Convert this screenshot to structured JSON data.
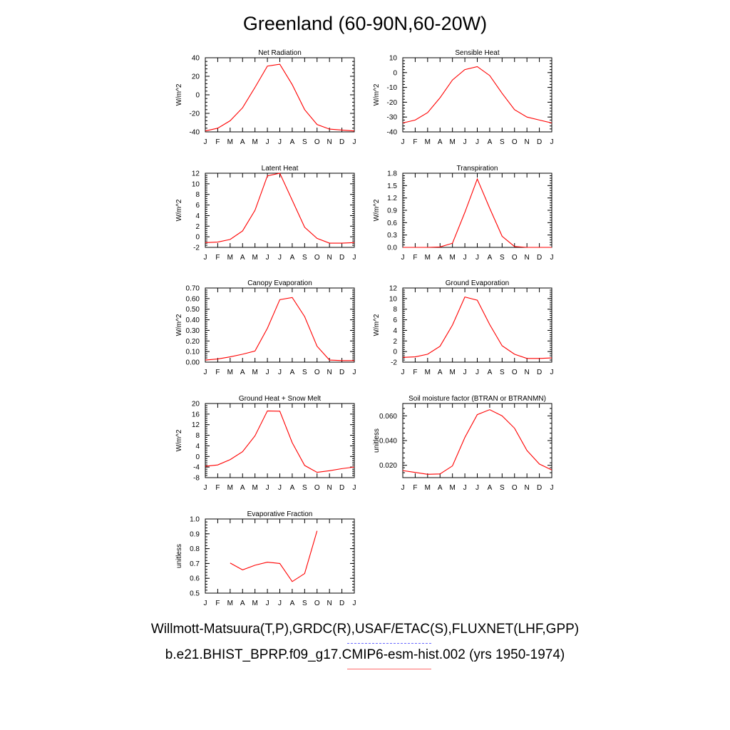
{
  "title": "Greenland (60-90N,60-20W)",
  "legend": {
    "obs": "Willmott-Matsuura(T,P),GRDC(R),USAF/ETAC(S),FLUXNET(LHF,GPP)",
    "model": "b.e21.BHIST_BPRP.f09_g17.CMIP6-esm-hist.002 (yrs 1950-1974)",
    "obs_color": "#6a6aff",
    "model_color": "#ff0000"
  },
  "chart_data": [
    {
      "type": "line",
      "title": "Net Radiation",
      "ylabel": "W/m^2",
      "ylim": [
        -40,
        40
      ],
      "yticks": [
        -40,
        -20,
        0,
        20,
        40
      ],
      "ytick_labels": [
        "-40",
        "-20",
        "0",
        "20",
        "40"
      ],
      "categories": [
        "J",
        "F",
        "M",
        "A",
        "M",
        "J",
        "J",
        "A",
        "S",
        "O",
        "N",
        "D",
        "J"
      ],
      "series": [
        {
          "color": "#ff0000",
          "values": [
            -39,
            -36,
            -28,
            -14,
            8,
            31,
            33,
            11,
            -16,
            -32,
            -37,
            -38,
            -39
          ]
        }
      ]
    },
    {
      "type": "line",
      "title": "Sensible Heat",
      "ylabel": "W/m^2",
      "ylim": [
        -40,
        10
      ],
      "yticks": [
        -40,
        -30,
        -20,
        -10,
        0,
        10
      ],
      "ytick_labels": [
        "-40",
        "-30",
        "-20",
        "-10",
        "0",
        "10"
      ],
      "categories": [
        "J",
        "F",
        "M",
        "A",
        "M",
        "J",
        "J",
        "A",
        "S",
        "O",
        "N",
        "D",
        "J"
      ],
      "series": [
        {
          "color": "#ff0000",
          "values": [
            -34,
            -32,
            -27,
            -17,
            -5,
            2,
            4,
            -2,
            -14,
            -25,
            -30,
            -32,
            -34
          ]
        }
      ]
    },
    {
      "type": "line",
      "title": "Latent Heat",
      "ylabel": "W/m^2",
      "ylim": [
        -2,
        12
      ],
      "yticks": [
        -2,
        0,
        2,
        4,
        6,
        8,
        10,
        12
      ],
      "ytick_labels": [
        "-2",
        "0",
        "2",
        "4",
        "6",
        "8",
        "10",
        "12"
      ],
      "categories": [
        "J",
        "F",
        "M",
        "A",
        "M",
        "J",
        "J",
        "A",
        "S",
        "O",
        "N",
        "D",
        "J"
      ],
      "series": [
        {
          "color": "#ff0000",
          "values": [
            -1.1,
            -1.0,
            -0.5,
            1.1,
            5.0,
            11.5,
            12.0,
            6.9,
            1.8,
            -0.3,
            -1.2,
            -1.2,
            -1.1
          ]
        }
      ]
    },
    {
      "type": "line",
      "title": "Transpiration",
      "ylabel": "W/m^2",
      "ylim": [
        0.0,
        1.8
      ],
      "yticks": [
        0.0,
        0.3,
        0.6,
        0.9,
        1.2,
        1.5,
        1.8
      ],
      "ytick_labels": [
        "0.0",
        "0.3",
        "0.6",
        "0.9",
        "1.2",
        "1.5",
        "1.8"
      ],
      "categories": [
        "J",
        "F",
        "M",
        "A",
        "M",
        "J",
        "J",
        "A",
        "S",
        "O",
        "N",
        "D",
        "J"
      ],
      "series": [
        {
          "color": "#ff0000",
          "values": [
            0.0,
            0.0,
            0.0,
            0.01,
            0.1,
            0.85,
            1.66,
            0.95,
            0.27,
            0.02,
            0.0,
            0.0,
            0.0
          ]
        }
      ]
    },
    {
      "type": "line",
      "title": "Canopy Evaporation",
      "ylabel": "W/m^2",
      "ylim": [
        0.0,
        0.7
      ],
      "yticks": [
        0.0,
        0.1,
        0.2,
        0.3,
        0.4,
        0.5,
        0.6,
        0.7
      ],
      "ytick_labels": [
        "0.00",
        "0.10",
        "0.20",
        "0.30",
        "0.40",
        "0.50",
        "0.60",
        "0.70"
      ],
      "categories": [
        "J",
        "F",
        "M",
        "A",
        "M",
        "J",
        "J",
        "A",
        "S",
        "O",
        "N",
        "D",
        "J"
      ],
      "series": [
        {
          "color": "#ff0000",
          "values": [
            0.02,
            0.03,
            0.05,
            0.075,
            0.105,
            0.32,
            0.59,
            0.61,
            0.43,
            0.15,
            0.02,
            0.015,
            0.015
          ]
        }
      ]
    },
    {
      "type": "line",
      "title": "Ground Evaporation",
      "ylabel": "W/m^2",
      "ylim": [
        -2,
        12
      ],
      "yticks": [
        -2,
        0,
        2,
        4,
        6,
        8,
        10,
        12
      ],
      "ytick_labels": [
        "-2",
        "0",
        "2",
        "4",
        "6",
        "8",
        "10",
        "12"
      ],
      "categories": [
        "J",
        "F",
        "M",
        "A",
        "M",
        "J",
        "J",
        "A",
        "S",
        "O",
        "N",
        "D",
        "J"
      ],
      "series": [
        {
          "color": "#ff0000",
          "values": [
            -1.1,
            -1.0,
            -0.5,
            1.0,
            5.0,
            10.3,
            9.7,
            5.1,
            1.1,
            -0.5,
            -1.3,
            -1.3,
            -1.2
          ]
        }
      ]
    },
    {
      "type": "line",
      "title": "Ground Heat + Snow Melt",
      "ylabel": "W/m^2",
      "ylim": [
        -8,
        20
      ],
      "yticks": [
        -8,
        -4,
        0,
        4,
        8,
        12,
        16,
        20
      ],
      "ytick_labels": [
        "-8",
        "-4",
        "0",
        "4",
        "8",
        "12",
        "16",
        "20"
      ],
      "categories": [
        "J",
        "F",
        "M",
        "A",
        "M",
        "J",
        "J",
        "A",
        "S",
        "O",
        "N",
        "D",
        "J"
      ],
      "series": [
        {
          "color": "#ff0000",
          "values": [
            -3.7,
            -3.2,
            -1.2,
            1.8,
            7.8,
            17.2,
            17.1,
            5.2,
            -3.4,
            -6.0,
            -5.4,
            -4.6,
            -4.0
          ]
        }
      ]
    },
    {
      "type": "line",
      "title": "Soil moisture factor (BTRAN or BTRANMN)",
      "ylabel": "unitless",
      "ylim": [
        0.01,
        0.07
      ],
      "yticks": [
        0.02,
        0.04,
        0.06
      ],
      "ytick_labels": [
        "0.020",
        "0.040",
        "0.060"
      ],
      "categories": [
        "J",
        "F",
        "M",
        "A",
        "M",
        "J",
        "J",
        "A",
        "S",
        "O",
        "N",
        "D",
        "J"
      ],
      "series": [
        {
          "color": "#ff0000",
          "values": [
            0.0157,
            0.0142,
            0.0127,
            0.013,
            0.0195,
            0.0425,
            0.061,
            0.065,
            0.06,
            0.05,
            0.032,
            0.021,
            0.0162
          ]
        }
      ]
    },
    {
      "type": "line",
      "title": "Evaporative Fraction",
      "ylabel": "unitless",
      "ylim": [
        0.5,
        1.0
      ],
      "yticks": [
        0.5,
        0.6,
        0.7,
        0.8,
        0.9,
        1.0
      ],
      "ytick_labels": [
        "0.5",
        "0.6",
        "0.7",
        "0.8",
        "0.9",
        "1.0"
      ],
      "categories": [
        "J",
        "F",
        "M",
        "A",
        "M",
        "J",
        "J",
        "A",
        "S",
        "O",
        "N",
        "D",
        "J"
      ],
      "series": [
        {
          "color": "#ff0000",
          "values": [
            null,
            null,
            0.703,
            0.657,
            0.688,
            0.709,
            0.7,
            0.578,
            0.632,
            0.92,
            null,
            null,
            null
          ]
        }
      ]
    }
  ]
}
